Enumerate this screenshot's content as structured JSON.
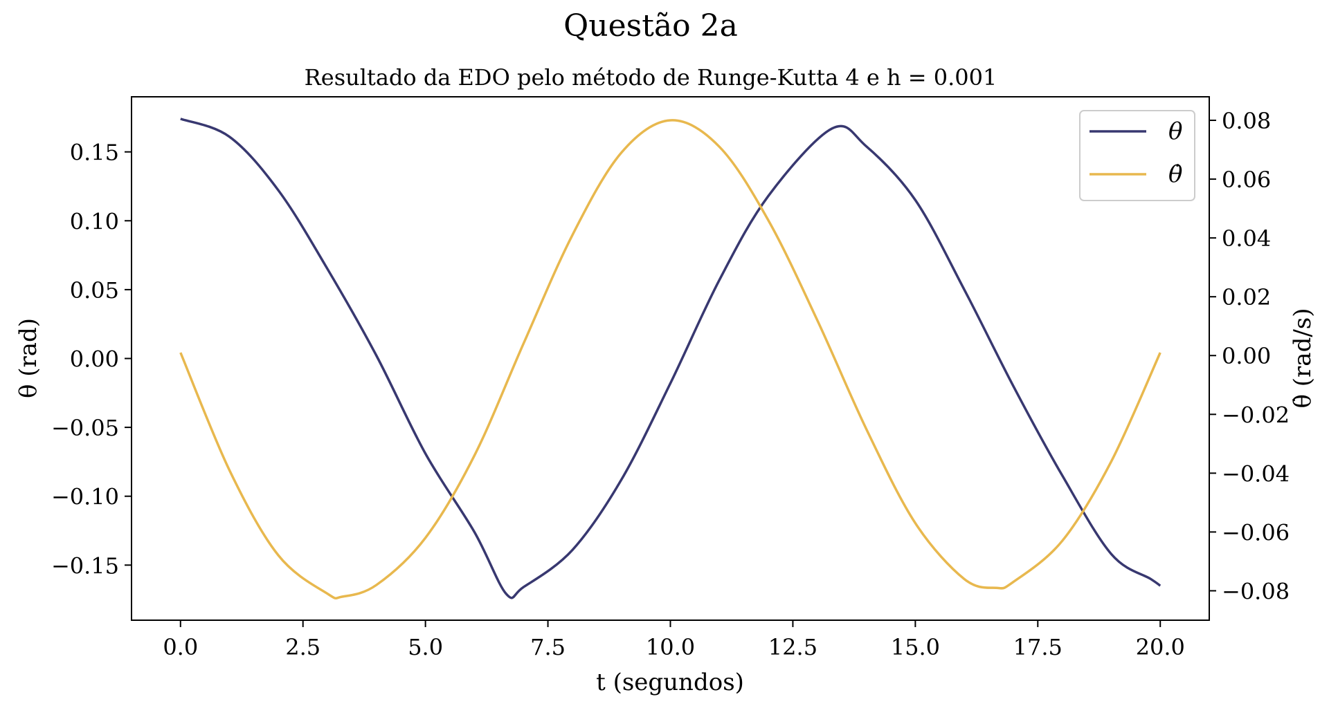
{
  "suptitle": "Questão 2a",
  "title": "Resultado da EDO pelo método de Runge-Kutta 4 e h = 0.001",
  "chart_data": {
    "type": "line",
    "xlabel": "t (segundos)",
    "ylabel_left": "θ (rad)",
    "ylabel_right": "θ̇ (rad/s)",
    "xlim": [
      -1.0,
      21.0
    ],
    "ylim_left": [
      -0.19,
      0.19
    ],
    "ylim_right": [
      -0.09,
      0.088
    ],
    "x_ticks": [
      "0.0",
      "2.5",
      "5.0",
      "7.5",
      "10.0",
      "12.5",
      "15.0",
      "17.5",
      "20.0"
    ],
    "x_tick_values": [
      0,
      2.5,
      5,
      7.5,
      10,
      12.5,
      15,
      17.5,
      20
    ],
    "y_left_ticks": [
      "0.15",
      "0.10",
      "0.05",
      "0.00",
      "−0.05",
      "−0.10",
      "−0.15"
    ],
    "y_left_tick_values": [
      0.15,
      0.1,
      0.05,
      0.0,
      -0.05,
      -0.1,
      -0.15
    ],
    "y_right_ticks": [
      "0.08",
      "0.06",
      "0.04",
      "0.02",
      "0.00",
      "−0.02",
      "−0.04",
      "−0.06",
      "−0.08"
    ],
    "y_right_tick_values": [
      0.08,
      0.06,
      0.04,
      0.02,
      0.0,
      -0.02,
      -0.04,
      -0.06,
      -0.08
    ],
    "legend_position": "top-right",
    "series": [
      {
        "name": "θ",
        "axis": "left",
        "color": "#383870",
        "x": [
          0,
          1,
          2,
          3,
          4,
          5,
          6,
          6.65,
          7,
          8,
          9,
          10,
          11,
          12,
          13.3,
          14,
          15,
          16,
          17,
          18,
          19,
          19.8,
          20
        ],
        "y": [
          0.174,
          0.161,
          0.122,
          0.065,
          0.002,
          -0.069,
          -0.126,
          -0.171,
          -0.166,
          -0.139,
          -0.088,
          -0.018,
          0.057,
          0.118,
          0.167,
          0.154,
          0.115,
          0.05,
          -0.02,
          -0.085,
          -0.142,
          -0.16,
          -0.165
        ]
      },
      {
        "name": "θ̇",
        "axis": "right",
        "color": "#E8B84E",
        "x": [
          0,
          1,
          2,
          3,
          3.3,
          4,
          5,
          6,
          7,
          8,
          9,
          10,
          11,
          12,
          13,
          14,
          15,
          16,
          16.65,
          17,
          18,
          19,
          20
        ],
        "y": [
          0.001,
          -0.039,
          -0.068,
          -0.081,
          -0.082,
          -0.078,
          -0.062,
          -0.034,
          0.004,
          0.041,
          0.069,
          0.08,
          0.071,
          0.046,
          0.012,
          -0.025,
          -0.057,
          -0.076,
          -0.079,
          -0.077,
          -0.063,
          -0.036,
          0.001
        ]
      }
    ]
  }
}
